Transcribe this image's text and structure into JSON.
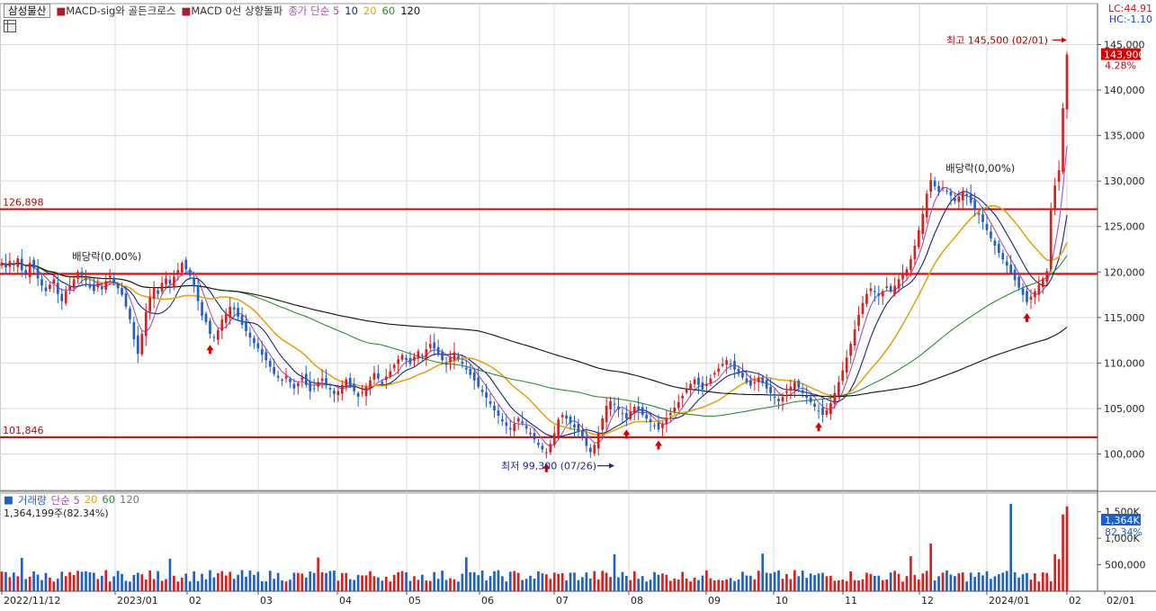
{
  "symbol": "삼성물산",
  "indicators": [
    {
      "label": "MACD-sig와 골든크로스",
      "color": "#b01a2a"
    },
    {
      "label": "MACD 0선 상향돌파",
      "color": "#b01a2a"
    }
  ],
  "ma_legend": {
    "label": "종가 단순 5",
    "periods": [
      "10",
      "20",
      "60",
      "120"
    ],
    "colors": {
      "5": "#a64fc0",
      "10": "#1a237e",
      "20": "#e3a418",
      "60": "#2f8a3a",
      "120": "#111111"
    }
  },
  "lc_text": "LC:44.91",
  "hc_text": "HC:-1.10",
  "volume_legend": {
    "label": "거래량",
    "ma_label": "단순 5",
    "periods": [
      "20",
      "60",
      "120"
    ]
  },
  "volume_value": "1,364,199주(82.34%)",
  "colors": {
    "up": "#e01c1c",
    "down": "#1f5fc8",
    "hline": "#d40000",
    "grid": "#d9d9d9"
  },
  "chart_data": {
    "type": "candlestick",
    "price_axis": {
      "ticks": [
        100000,
        105000,
        110000,
        115000,
        120000,
        125000,
        130000,
        135000,
        140000,
        145000
      ],
      "tick_labels": [
        "100,000",
        "105,000",
        "110,000",
        "115,000",
        "120,000",
        "125,000",
        "130,000",
        "135,000",
        "140,000",
        "145,000"
      ],
      "range": [
        96000,
        149500
      ]
    },
    "volume_axis": {
      "ticks": [
        500000,
        1000000,
        1500000
      ],
      "tick_labels": [
        "500,000",
        "1,000K",
        "1,500K"
      ],
      "range": [
        0,
        1750000
      ]
    },
    "time_axis": {
      "start": "2022-11-12",
      "labels": [
        "2022/11/12",
        "2023/01",
        "02",
        "03",
        "04",
        "05",
        "06",
        "07",
        "08",
        "09",
        "10",
        "11",
        "12",
        "2024/01",
        "02",
        "02/01"
      ]
    },
    "horizontal_lines": [
      {
        "value": 126898,
        "label": "126,898"
      },
      {
        "value": 119800,
        "label": ""
      },
      {
        "value": 101846,
        "label": "101,846"
      }
    ],
    "annotations": {
      "high": {
        "text": "최고 145,500 (02/01)",
        "value": 145500
      },
      "low": {
        "text": "최저 99,300 (07/26)",
        "value": 99300
      },
      "dividend1": "배당락(0.00%)",
      "dividend2": "배당락(0,00%)"
    },
    "last_price": {
      "value": 143900,
      "label": "143,900",
      "change": "4.28%"
    },
    "last_volume": {
      "label": "1,364K",
      "ratio": "82.34%"
    },
    "close_series": [
      121000,
      120500,
      121200,
      120800,
      121500,
      120200,
      119800,
      121000,
      120400,
      119300,
      118500,
      117900,
      118600,
      119200,
      117600,
      116800,
      117900,
      118500,
      119200,
      120000,
      119600,
      119100,
      118300,
      117900,
      118700,
      118100,
      119000,
      119600,
      118800,
      118200,
      117500,
      116200,
      114800,
      112600,
      111000,
      113200,
      115600,
      117200,
      118300,
      117600,
      118800,
      119300,
      118700,
      119500,
      120200,
      121000,
      120300,
      119600,
      118400,
      116800,
      115200,
      114500,
      113200,
      112800,
      113600,
      114800,
      115400,
      116200,
      115900,
      115100,
      114200,
      113500,
      112800,
      112200,
      111600,
      110900,
      110300,
      109600,
      108800,
      108400,
      108100,
      108600,
      107900,
      107200,
      107800,
      108400,
      107600,
      106900,
      107200,
      107900,
      108300,
      107700,
      107100,
      106600,
      106900,
      107600,
      108200,
      107500,
      106900,
      106300,
      106800,
      107400,
      108100,
      108900,
      108300,
      107700,
      108500,
      109100,
      109800,
      110400,
      110900,
      110300,
      109900,
      110700,
      111300,
      110800,
      111500,
      112100,
      111600,
      110900,
      110300,
      109800,
      110600,
      111200,
      110500,
      109900,
      109300,
      108700,
      108100,
      107400,
      106800,
      106200,
      105500,
      104800,
      104200,
      103600,
      103100,
      102700,
      103300,
      103900,
      103400,
      102800,
      102200,
      101600,
      101000,
      100500,
      100200,
      101100,
      102300,
      103800,
      104300,
      103900,
      103400,
      102900,
      102400,
      101800,
      100900,
      100200,
      101000,
      102300,
      103900,
      105300,
      105800,
      105400,
      104900,
      104400,
      103900,
      104600,
      105200,
      104800,
      104300,
      103900,
      103500,
      103100,
      102700,
      103300,
      103900,
      104500,
      105100,
      105700,
      106400,
      107100,
      107700,
      108200,
      107600,
      107100,
      107700,
      108300,
      108900,
      109400,
      109900,
      110300,
      109800,
      109300,
      108800,
      108400,
      107900,
      107500,
      107900,
      108400,
      107800,
      107200,
      106700,
      106200,
      105800,
      106300,
      106900,
      107400,
      107900,
      107300,
      106700,
      106200,
      105700,
      105200,
      104700,
      104300,
      104800,
      105600,
      106700,
      107900,
      109200,
      110600,
      112100,
      113700,
      115300,
      116600,
      117600,
      118200,
      117800,
      117400,
      117900,
      118400,
      117900,
      118500,
      119200,
      119800,
      120300,
      121400,
      122900,
      124600,
      126400,
      128600,
      130100,
      129400,
      128800,
      129300,
      128900,
      128400,
      127800,
      128300,
      128900,
      128400,
      127600,
      126900,
      126300,
      125500,
      124600,
      123700,
      122900,
      122100,
      121400,
      120700,
      119900,
      119100,
      118300,
      117500,
      116700,
      117300,
      117900,
      118600,
      119300,
      120100,
      126800,
      129500,
      131200,
      138000,
      143900
    ],
    "ma_series": [
      {
        "name": "5"
      },
      {
        "name": "10"
      },
      {
        "name": "20"
      },
      {
        "name": "60"
      },
      {
        "name": "120"
      }
    ]
  }
}
